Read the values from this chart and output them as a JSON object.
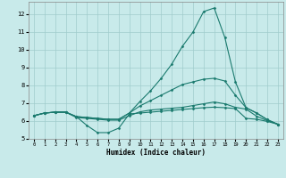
{
  "xlabel": "Humidex (Indice chaleur)",
  "bg_color": "#c8eaea",
  "grid_color": "#a0cccc",
  "line_color": "#1a7a6e",
  "xlim": [
    -0.5,
    23.5
  ],
  "ylim": [
    5.0,
    12.7
  ],
  "yticks": [
    5,
    6,
    7,
    8,
    9,
    10,
    11,
    12
  ],
  "xticks": [
    0,
    1,
    2,
    3,
    4,
    5,
    6,
    7,
    8,
    9,
    10,
    11,
    12,
    13,
    14,
    15,
    16,
    17,
    18,
    19,
    20,
    21,
    22,
    23
  ],
  "lines": [
    {
      "x": [
        0,
        1,
        2,
        3,
        4,
        5,
        6,
        7,
        8,
        9,
        10,
        11,
        12,
        13,
        14,
        15,
        16,
        17,
        18,
        19,
        20,
        21,
        22,
        23
      ],
      "y": [
        6.3,
        6.45,
        6.5,
        6.5,
        6.25,
        5.75,
        5.35,
        5.35,
        5.6,
        6.4,
        6.45,
        6.5,
        6.55,
        6.6,
        6.65,
        6.7,
        6.75,
        6.78,
        6.75,
        6.7,
        6.15,
        6.1,
        5.98,
        5.82
      ]
    },
    {
      "x": [
        0,
        1,
        2,
        3,
        4,
        5,
        6,
        7,
        8,
        9,
        10,
        11,
        12,
        13,
        14,
        15,
        16,
        17,
        18,
        19,
        20,
        21,
        22,
        23
      ],
      "y": [
        6.3,
        6.45,
        6.5,
        6.5,
        6.25,
        6.2,
        6.15,
        6.1,
        6.1,
        6.45,
        6.85,
        7.15,
        7.45,
        7.75,
        8.05,
        8.2,
        8.35,
        8.4,
        8.25,
        7.45,
        6.75,
        6.45,
        6.08,
        5.82
      ]
    },
    {
      "x": [
        0,
        1,
        2,
        3,
        4,
        5,
        6,
        7,
        8,
        9,
        10,
        11,
        12,
        13,
        14,
        15,
        16,
        17,
        18,
        19,
        20,
        21,
        22,
        23
      ],
      "y": [
        6.3,
        6.45,
        6.5,
        6.5,
        6.25,
        6.2,
        6.15,
        6.1,
        6.1,
        6.45,
        7.1,
        7.7,
        8.4,
        9.2,
        10.2,
        11.0,
        12.15,
        12.35,
        10.7,
        8.2,
        6.75,
        6.45,
        6.08,
        5.82
      ]
    },
    {
      "x": [
        0,
        1,
        2,
        3,
        4,
        5,
        6,
        7,
        8,
        9,
        10,
        11,
        12,
        13,
        14,
        15,
        16,
        17,
        18,
        19,
        20,
        21,
        22,
        23
      ],
      "y": [
        6.3,
        6.45,
        6.5,
        6.5,
        6.2,
        6.15,
        6.1,
        6.05,
        6.05,
        6.3,
        6.52,
        6.62,
        6.67,
        6.72,
        6.77,
        6.87,
        6.97,
        7.07,
        6.97,
        6.77,
        6.67,
        6.27,
        6.02,
        5.82
      ]
    }
  ]
}
